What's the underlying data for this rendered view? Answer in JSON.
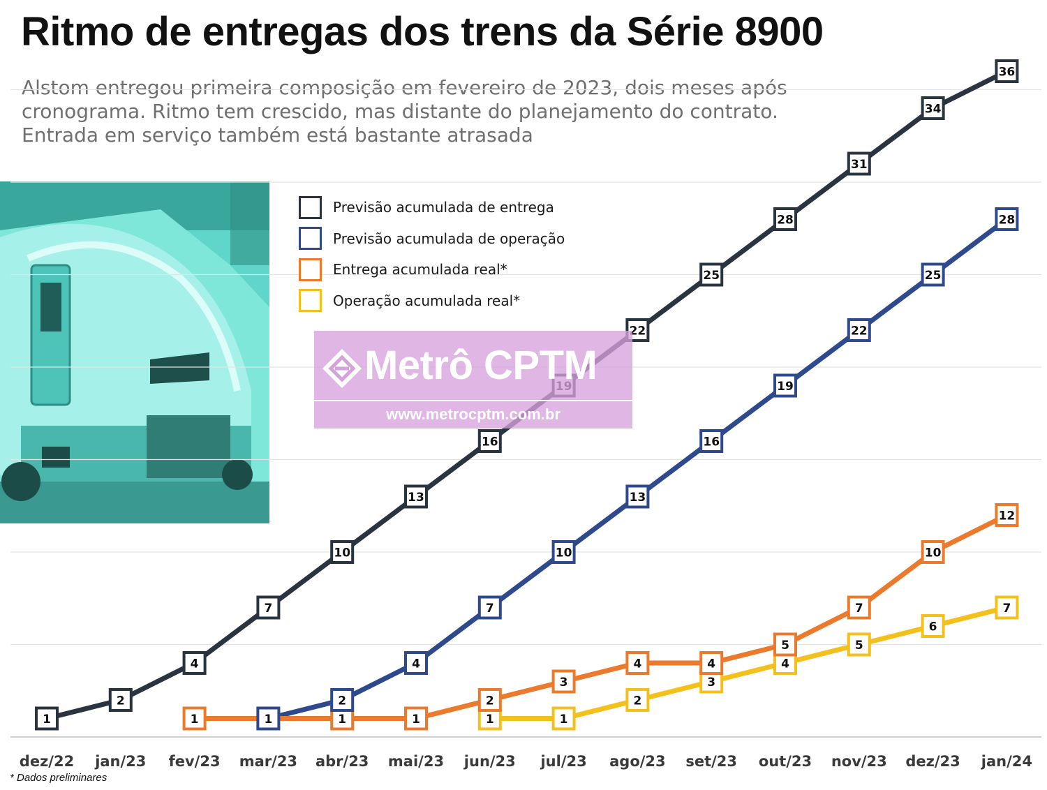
{
  "header": {
    "title": "Ritmo de entregas dos trens da Série 8900",
    "subtitle": "Alstom entregou primeira composição em fevereiro de 2023, dois meses após cronograma. Ritmo tem crescido, mas distante do planejamento do contrato. Entrada em serviço também está bastante atrasada"
  },
  "watermark": {
    "name": "Metrô CPTM",
    "url": "www.metrocptm.com.br"
  },
  "footnote": "* Dados preliminares",
  "chart_data": {
    "type": "line",
    "categories": [
      "dez/22",
      "jan/23",
      "fev/23",
      "mar/23",
      "abr/23",
      "mai/23",
      "jun/23",
      "jul/23",
      "ago/23",
      "set/23",
      "out/23",
      "nov/23",
      "dez/23",
      "jan/24"
    ],
    "ylim": [
      0,
      36
    ],
    "grid": true,
    "legend_position": "top-left",
    "series": [
      {
        "name": "Previsão acumulada de entrega",
        "color": "#2a3340",
        "values": [
          1,
          2,
          4,
          7,
          10,
          13,
          16,
          19,
          22,
          25,
          28,
          31,
          34,
          36
        ]
      },
      {
        "name": "Previsão acumulada de operação",
        "color": "#2e4a8c",
        "values": [
          null,
          null,
          null,
          1,
          2,
          4,
          7,
          10,
          13,
          16,
          19,
          22,
          25,
          28
        ]
      },
      {
        "name": "Entrega acumulada real*",
        "color": "#ec7a2c",
        "values": [
          null,
          null,
          1,
          1,
          1,
          1,
          2,
          3,
          4,
          4,
          5,
          7,
          10,
          12
        ]
      },
      {
        "name": "Operação acumulada real*",
        "color": "#f4c01c",
        "values": [
          null,
          null,
          null,
          null,
          null,
          null,
          1,
          1,
          2,
          3,
          4,
          5,
          6,
          7
        ]
      }
    ]
  }
}
